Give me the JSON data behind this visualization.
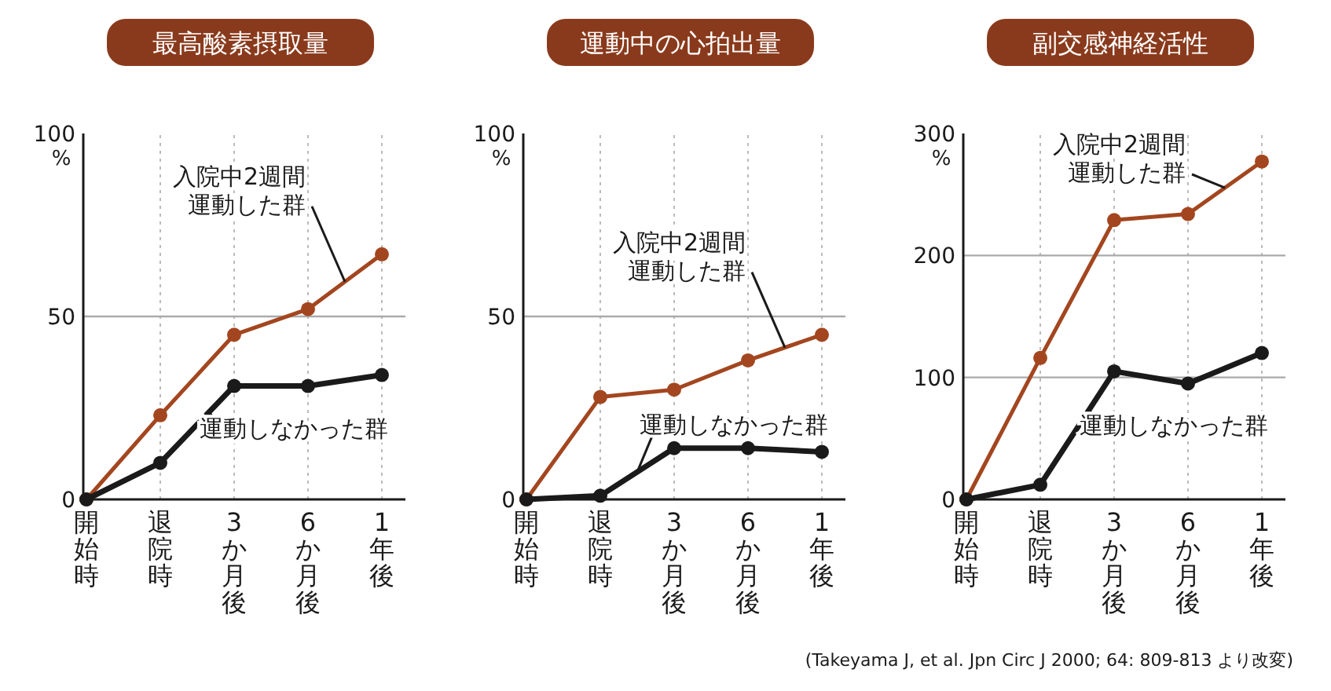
{
  "chart_data": [
    {
      "type": "line",
      "title": "最高酸素摂取量",
      "categories": [
        "開始時",
        "退院時",
        "3か月後",
        "6か月後",
        "1年後"
      ],
      "ylabel": "%",
      "ylim": [
        0,
        100
      ],
      "yticks": [
        0,
        50,
        100
      ],
      "grid": "x",
      "ref_lines": [
        {
          "axis": "y",
          "value": 50,
          "color": "#aaaaaa"
        }
      ],
      "marker": "circle",
      "legend": false,
      "series": [
        {
          "name": "入院中2週間運動した群",
          "color": "#a3461f",
          "values": [
            0,
            23,
            45,
            52,
            67
          ]
        },
        {
          "name": "運動しなかった群",
          "color": "#1a1a1a",
          "values": [
            0,
            10,
            31,
            31,
            34
          ]
        }
      ]
    },
    {
      "type": "line",
      "title": "運動中の心拍出量",
      "categories": [
        "開始時",
        "退院時",
        "3か月後",
        "6か月後",
        "1年後"
      ],
      "ylabel": "%",
      "ylim": [
        0,
        100
      ],
      "yticks": [
        0,
        50,
        100
      ],
      "grid": "x",
      "ref_lines": [
        {
          "axis": "y",
          "value": 50,
          "color": "#aaaaaa"
        }
      ],
      "marker": "circle",
      "legend": false,
      "series": [
        {
          "name": "入院中2週間運動した群",
          "color": "#a3461f",
          "values": [
            0,
            28,
            30,
            38,
            45
          ]
        },
        {
          "name": "運動しなかった群",
          "color": "#1a1a1a",
          "values": [
            0,
            1,
            14,
            14,
            13
          ]
        }
      ]
    },
    {
      "type": "line",
      "title": "副交感神経活性",
      "categories": [
        "開始時",
        "退院時",
        "3か月後",
        "6か月後",
        "1年後"
      ],
      "ylabel": "%",
      "ylim": [
        0,
        300
      ],
      "yticks": [
        0,
        100,
        200,
        300
      ],
      "grid": "x",
      "ref_lines": [
        {
          "axis": "y",
          "value": 100,
          "color": "#aaaaaa"
        },
        {
          "axis": "y",
          "value": 200,
          "color": "#aaaaaa"
        }
      ],
      "marker": "circle",
      "legend": false,
      "annotations": [
        "(Takeyama J, et al. Jpn Circ J 2000; 64: 809-813 より改変)"
      ],
      "series": [
        {
          "name": "入院中2週間運動した群",
          "color": "#a3461f",
          "values": [
            0,
            116,
            229,
            234,
            277
          ]
        },
        {
          "name": "運動しなかった群",
          "color": "#1a1a1a",
          "values": [
            0,
            12,
            105,
            95,
            120
          ]
        }
      ]
    }
  ]
}
